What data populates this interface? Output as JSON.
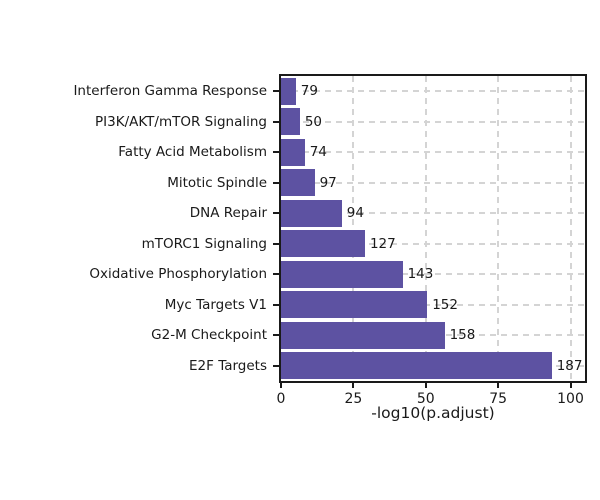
{
  "chart_data": {
    "type": "bar",
    "orientation": "horizontal",
    "title": "",
    "xlabel": "-log10(p.adjust)",
    "ylabel": "",
    "xlim": [
      0,
      105
    ],
    "xticks": [
      0,
      25,
      50,
      75,
      100
    ],
    "grid": "dashed-both-axes",
    "legend": "none",
    "categories": [
      "Interferon Gamma Response",
      "PI3K/AKT/mTOR Signaling",
      "Fatty Acid Metabolism",
      "Mitotic Spindle",
      "DNA Repair",
      "mTORC1 Signaling",
      "Oxidative Phosphorylation",
      "Myc Targets V1",
      "G2-M Checkpoint",
      "E2F Targets"
    ],
    "values": [
      5.1,
      6.5,
      8.2,
      11.6,
      21.0,
      29.0,
      42.0,
      50.5,
      56.5,
      93.5
    ],
    "bar_labels": [
      "79",
      "50",
      "74",
      "97",
      "94",
      "127",
      "143",
      "152",
      "158",
      "187"
    ],
    "colors": {
      "bar": "#5D52A2",
      "grid": "#d4d4d4",
      "axis": "#1a1a1a",
      "text": "#1a1a1a",
      "background": "#ffffff"
    }
  }
}
